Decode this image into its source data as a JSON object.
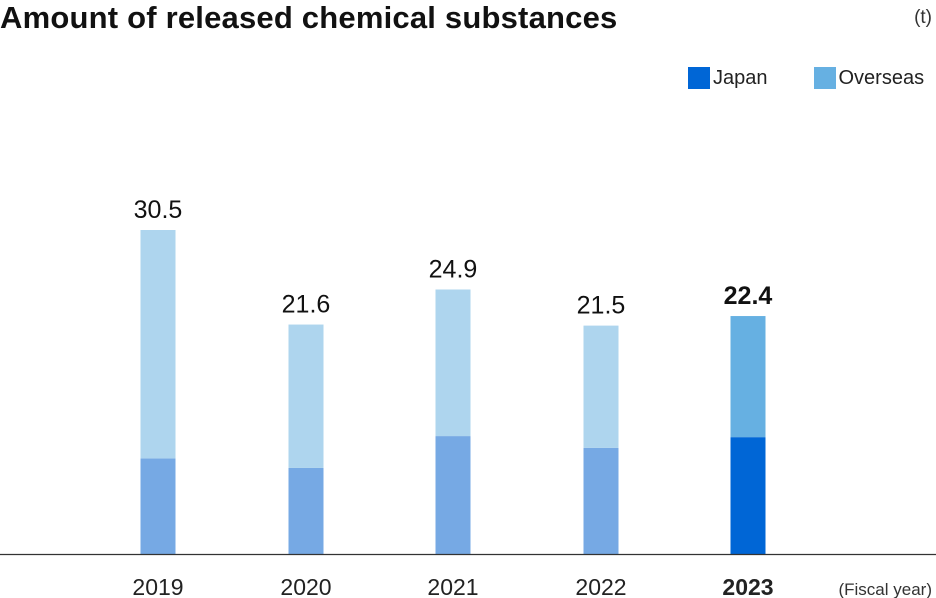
{
  "title": "Amount of released chemical substances",
  "unit": "(t)",
  "colors": {
    "japan": "#0066d6",
    "overseas": "#66b0e2",
    "japan_past": "#76a9e4",
    "overseas_past": "#aed5ee",
    "axis": "#333333"
  },
  "chart_data": {
    "type": "bar",
    "stacked": true,
    "categories": [
      "2019",
      "2020",
      "2021",
      "2022",
      "2023"
    ],
    "series": [
      {
        "name": "Japan",
        "values": [
          9.0,
          8.1,
          11.1,
          10.0,
          11.0
        ]
      },
      {
        "name": "Overseas",
        "values": [
          21.5,
          13.5,
          13.8,
          11.5,
          11.4
        ]
      }
    ],
    "totals": [
      "30.5",
      "21.6",
      "24.9",
      "21.5",
      "22.4"
    ],
    "highlight_category": "2023",
    "xlabel": "(Fiscal year)",
    "ylabel": "",
    "ylim": [
      0,
      30.5
    ],
    "grid": false,
    "legend_position": "top-right"
  }
}
